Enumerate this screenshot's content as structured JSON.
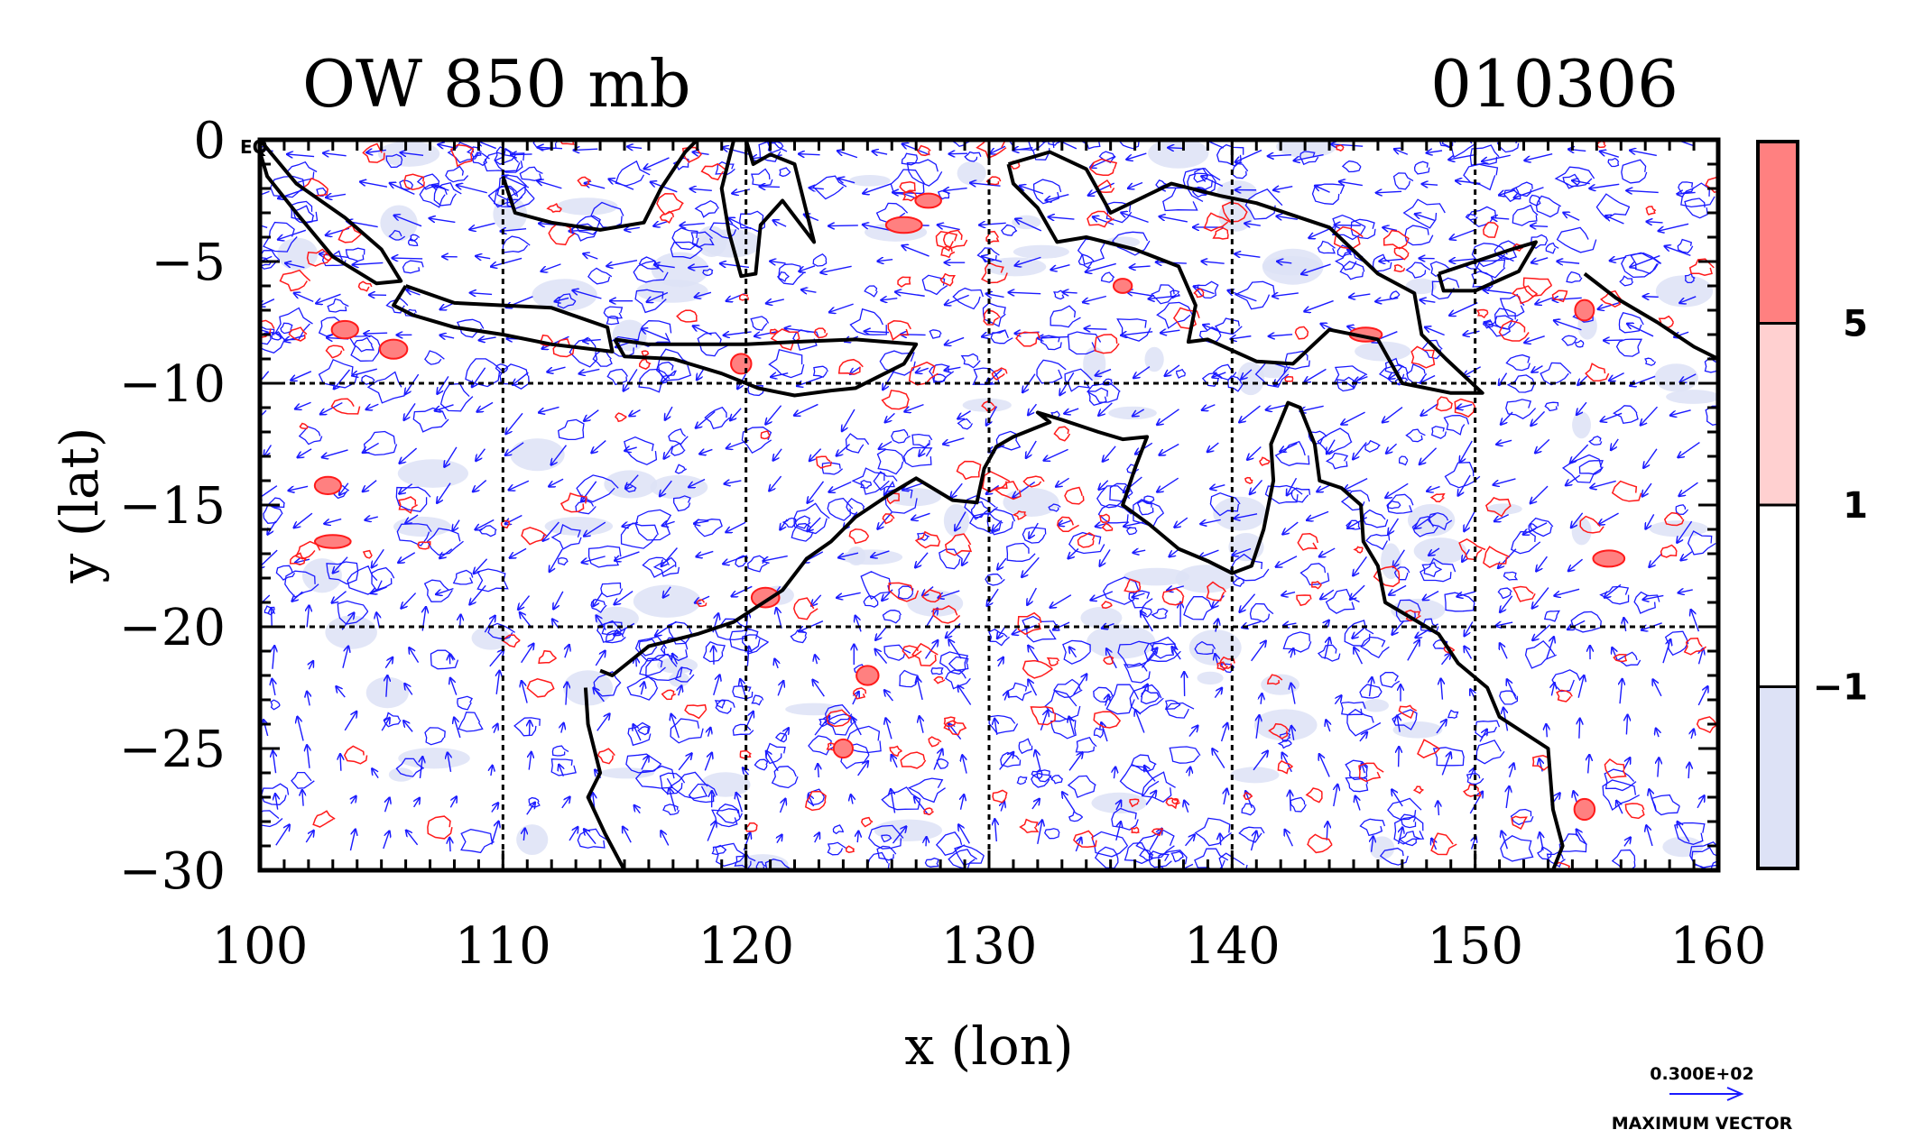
{
  "title_left": "OW 850 mb",
  "title_right": "010306",
  "eq_label": "EQ",
  "chart_data": {
    "type": "contour_map_with_vectors",
    "title": "OW 850 mb",
    "date": "010306",
    "xlabel": "x (lon)",
    "ylabel": "y (lat)",
    "xlim": [
      100,
      160
    ],
    "ylim": [
      -30,
      0
    ],
    "x_ticks": [
      100,
      110,
      120,
      130,
      140,
      150,
      160
    ],
    "y_ticks": [
      0,
      -5,
      -10,
      -15,
      -20,
      -25,
      -30
    ],
    "y_tick_labels": [
      "0",
      "−5",
      "−10",
      "−15",
      "−20",
      "−25",
      "−30"
    ],
    "grid_lon": [
      110,
      120,
      130,
      140,
      150
    ],
    "grid_lat": [
      -10,
      -20
    ],
    "colorbar": {
      "levels": [
        -1,
        1,
        5
      ],
      "level_labels": [
        "−1",
        "1",
        "5"
      ],
      "bands": [
        {
          "range": "> 5",
          "color": "#ff8080"
        },
        {
          "range": "1 to 5",
          "color": "#ffd0d0"
        },
        {
          "range": "-1 to 1",
          "color": "#ffffff"
        },
        {
          "range": "< -1",
          "color": "#dde2f6"
        }
      ]
    },
    "vector_legend": {
      "value_label": "0.300E+02",
      "caption": "MAXIMUM VECTOR"
    },
    "colors": {
      "positive_contour": "#ff1a1a",
      "negative_contour": "#1a1aff",
      "vector": "#1a1aff",
      "coastline": "#000000"
    },
    "coastlines": [
      {
        "name": "sumatra",
        "points": [
          [
            100,
            0
          ],
          [
            101.5,
            -1.8
          ],
          [
            103.5,
            -3.2
          ],
          [
            105,
            -4.5
          ],
          [
            105.8,
            -5.8
          ],
          [
            104.8,
            -5.9
          ],
          [
            103,
            -4.8
          ],
          [
            101.5,
            -3
          ],
          [
            100.3,
            -1.5
          ],
          [
            100,
            -0.5
          ]
        ]
      },
      {
        "name": "borneo",
        "points": [
          [
            110,
            -1.5
          ],
          [
            110.5,
            -3
          ],
          [
            112,
            -3.4
          ],
          [
            114,
            -3.7
          ],
          [
            115.8,
            -3.4
          ],
          [
            116.5,
            -2
          ],
          [
            117.5,
            -0.5
          ],
          [
            118,
            0
          ]
        ]
      },
      {
        "name": "java",
        "points": [
          [
            106,
            -6
          ],
          [
            108,
            -6.7
          ],
          [
            110,
            -6.8
          ],
          [
            112,
            -6.9
          ],
          [
            114.3,
            -7.7
          ],
          [
            114.5,
            -8.7
          ],
          [
            112,
            -8.4
          ],
          [
            110,
            -8
          ],
          [
            108,
            -7.7
          ],
          [
            106.3,
            -7.2
          ],
          [
            105.5,
            -6.8
          ],
          [
            106,
            -6
          ]
        ]
      },
      {
        "name": "lesser_sunda",
        "points": [
          [
            114.6,
            -8.2
          ],
          [
            116,
            -8.4
          ],
          [
            118,
            -8.4
          ],
          [
            120,
            -8.4
          ],
          [
            122,
            -8.3
          ],
          [
            124.5,
            -8.2
          ],
          [
            127,
            -8.4
          ],
          [
            126.5,
            -9.2
          ],
          [
            124.5,
            -10.2
          ],
          [
            123.5,
            -10.3
          ],
          [
            122,
            -10.5
          ],
          [
            120.5,
            -10.2
          ],
          [
            119,
            -9.6
          ],
          [
            117,
            -9
          ],
          [
            115,
            -8.9
          ],
          [
            114.6,
            -8.2
          ]
        ]
      },
      {
        "name": "sulawesi",
        "points": [
          [
            119.5,
            0
          ],
          [
            119,
            -2
          ],
          [
            119.3,
            -3.8
          ],
          [
            119.8,
            -5.6
          ],
          [
            120.4,
            -5.5
          ],
          [
            120.6,
            -3.5
          ],
          [
            121.5,
            -2.5
          ],
          [
            122.8,
            -4.2
          ],
          [
            122,
            -1
          ],
          [
            121,
            -0.6
          ],
          [
            120.3,
            -1
          ],
          [
            120,
            0
          ]
        ]
      },
      {
        "name": "new_guinea",
        "points": [
          [
            130.8,
            -1
          ],
          [
            132.5,
            -0.5
          ],
          [
            134,
            -1.2
          ],
          [
            135,
            -3
          ],
          [
            137.5,
            -1.8
          ],
          [
            139.5,
            -2.3
          ],
          [
            141,
            -2.6
          ],
          [
            144,
            -3.6
          ],
          [
            146,
            -5.5
          ],
          [
            147.5,
            -6.3
          ],
          [
            147.8,
            -8
          ],
          [
            148.8,
            -9
          ],
          [
            150.3,
            -10.4
          ],
          [
            149,
            -10.4
          ],
          [
            147,
            -10
          ],
          [
            146,
            -8.2
          ],
          [
            144,
            -7.8
          ],
          [
            142.5,
            -9.2
          ],
          [
            141,
            -9.1
          ],
          [
            139,
            -8.2
          ],
          [
            138.2,
            -8.3
          ],
          [
            138.5,
            -6.8
          ],
          [
            137.8,
            -5.2
          ],
          [
            136,
            -4.5
          ],
          [
            134,
            -4
          ],
          [
            132.8,
            -4.2
          ],
          [
            132,
            -2.8
          ],
          [
            131,
            -1.8
          ],
          [
            130.8,
            -1
          ]
        ]
      },
      {
        "name": "new_britain",
        "points": [
          [
            148.5,
            -5.5
          ],
          [
            150,
            -5
          ],
          [
            151.5,
            -4.5
          ],
          [
            152.5,
            -4.2
          ],
          [
            151.8,
            -5.4
          ],
          [
            150,
            -6.2
          ],
          [
            148.7,
            -6.2
          ],
          [
            148.5,
            -5.5
          ]
        ]
      },
      {
        "name": "solomon_is",
        "points": [
          [
            154.5,
            -5.5
          ],
          [
            155.8,
            -6.5
          ],
          [
            157.5,
            -7.5
          ],
          [
            159,
            -8.5
          ],
          [
            160,
            -9
          ]
        ]
      },
      {
        "name": "australia",
        "points": [
          [
            114,
            -21.8
          ],
          [
            114.5,
            -22
          ],
          [
            116,
            -20.8
          ],
          [
            118,
            -20.3
          ],
          [
            119.5,
            -19.8
          ],
          [
            121.5,
            -18.5
          ],
          [
            122.5,
            -17.2
          ],
          [
            123.5,
            -16.5
          ],
          [
            124.5,
            -15.5
          ],
          [
            126,
            -14.5
          ],
          [
            127,
            -13.9
          ],
          [
            128.5,
            -14.8
          ],
          [
            129.5,
            -14.9
          ],
          [
            129.8,
            -13.5
          ],
          [
            130.3,
            -12.6
          ],
          [
            131,
            -12.2
          ],
          [
            132.5,
            -11.6
          ],
          [
            132,
            -11.2
          ],
          [
            133,
            -11.5
          ],
          [
            134.5,
            -12
          ],
          [
            135.5,
            -12.3
          ],
          [
            136.5,
            -12.2
          ],
          [
            136,
            -13.5
          ],
          [
            135.5,
            -15
          ],
          [
            136.6,
            -15.8
          ],
          [
            137.8,
            -16.8
          ],
          [
            139,
            -17.3
          ],
          [
            140,
            -17.8
          ],
          [
            140.8,
            -17.5
          ],
          [
            141.3,
            -16
          ],
          [
            141.7,
            -14
          ],
          [
            141.6,
            -12.5
          ],
          [
            142.3,
            -10.8
          ],
          [
            142.8,
            -11
          ],
          [
            143.4,
            -12.5
          ],
          [
            143.6,
            -14
          ],
          [
            144.5,
            -14.3
          ],
          [
            145.3,
            -15
          ],
          [
            145.4,
            -16.5
          ],
          [
            146,
            -17.5
          ],
          [
            146.3,
            -19
          ],
          [
            148.5,
            -20.3
          ],
          [
            149.3,
            -21.5
          ],
          [
            150.5,
            -22.5
          ],
          [
            151,
            -23.7
          ],
          [
            153,
            -25
          ],
          [
            153.2,
            -27.5
          ],
          [
            153.6,
            -29
          ],
          [
            153.2,
            -30
          ]
        ]
      },
      {
        "name": "australia_west",
        "points": [
          [
            113.4,
            -22.5
          ],
          [
            113.5,
            -24
          ],
          [
            114,
            -26
          ],
          [
            113.5,
            -27
          ],
          [
            114.2,
            -28.5
          ],
          [
            115,
            -30
          ]
        ]
      }
    ]
  }
}
